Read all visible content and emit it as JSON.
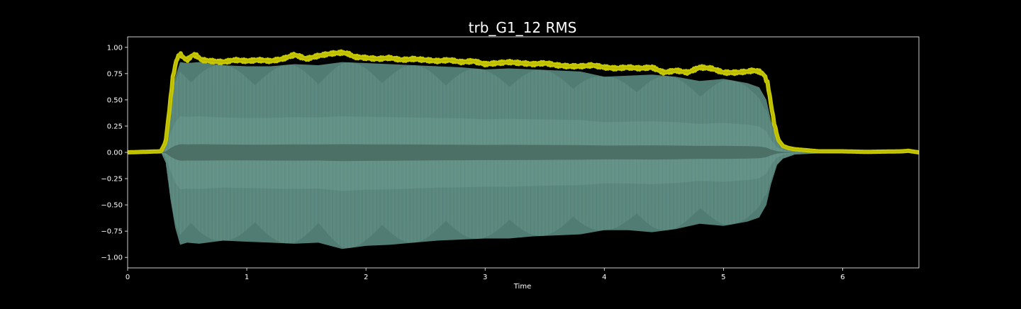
{
  "chart_data": {
    "type": "line",
    "title": "trb_G1_12 RMS",
    "xlabel": "Time",
    "ylabel": "",
    "xlim": [
      0,
      6.64
    ],
    "ylim": [
      -1.1,
      1.1
    ],
    "xticks": [
      0,
      1,
      2,
      3,
      4,
      5,
      6
    ],
    "xtick_labels": [
      "0",
      "1",
      "2",
      "3",
      "4",
      "5",
      "6"
    ],
    "yticks": [
      1.0,
      0.75,
      0.5,
      0.25,
      0.0,
      -0.25,
      -0.5,
      -0.75,
      -1.0
    ],
    "ytick_labels": [
      "1.00",
      "0.75",
      "0.50",
      "0.25",
      "0.00",
      "−0.25",
      "−0.50",
      "−0.75",
      "−1.00"
    ],
    "grid": false,
    "background": "#000000",
    "series": [
      {
        "kind": "waveform-envelope",
        "color": "#5a8a7f",
        "inner_color": "#3b5a52",
        "x": [
          0.0,
          0.28,
          0.32,
          0.36,
          0.4,
          0.44,
          0.5,
          0.6,
          0.8,
          1.0,
          1.2,
          1.4,
          1.6,
          1.8,
          2.0,
          2.2,
          2.4,
          2.6,
          2.8,
          3.0,
          3.2,
          3.4,
          3.6,
          3.8,
          4.0,
          4.2,
          4.4,
          4.6,
          4.8,
          5.0,
          5.2,
          5.3,
          5.36,
          5.4,
          5.45,
          5.5,
          5.6,
          5.8,
          6.0,
          6.3,
          6.64
        ],
        "upper": [
          0.0,
          0.0,
          0.1,
          0.45,
          0.72,
          0.86,
          0.85,
          0.86,
          0.83,
          0.82,
          0.82,
          0.84,
          0.83,
          0.86,
          0.85,
          0.84,
          0.83,
          0.82,
          0.81,
          0.79,
          0.8,
          0.79,
          0.78,
          0.77,
          0.72,
          0.73,
          0.74,
          0.72,
          0.68,
          0.7,
          0.66,
          0.62,
          0.5,
          0.3,
          0.12,
          0.06,
          0.02,
          0.01,
          0.0,
          0.0,
          0.0
        ],
        "lower": [
          0.0,
          0.0,
          -0.1,
          -0.45,
          -0.72,
          -0.88,
          -0.86,
          -0.87,
          -0.84,
          -0.85,
          -0.86,
          -0.87,
          -0.86,
          -0.92,
          -0.89,
          -0.88,
          -0.86,
          -0.84,
          -0.83,
          -0.82,
          -0.82,
          -0.8,
          -0.79,
          -0.78,
          -0.74,
          -0.74,
          -0.76,
          -0.73,
          -0.68,
          -0.7,
          -0.66,
          -0.62,
          -0.5,
          -0.3,
          -0.12,
          -0.06,
          -0.02,
          -0.01,
          0.0,
          0.0,
          0.0
        ]
      },
      {
        "kind": "rms-line",
        "color": "#c8c800",
        "x": [
          0.0,
          0.28,
          0.32,
          0.35,
          0.38,
          0.41,
          0.44,
          0.47,
          0.5,
          0.55,
          0.58,
          0.62,
          0.7,
          0.8,
          0.9,
          1.0,
          1.1,
          1.2,
          1.3,
          1.4,
          1.5,
          1.6,
          1.7,
          1.8,
          1.85,
          1.9,
          2.0,
          2.1,
          2.2,
          2.3,
          2.4,
          2.5,
          2.6,
          2.7,
          2.8,
          2.9,
          3.0,
          3.1,
          3.2,
          3.3,
          3.4,
          3.5,
          3.6,
          3.7,
          3.8,
          3.9,
          4.0,
          4.1,
          4.2,
          4.3,
          4.4,
          4.5,
          4.6,
          4.7,
          4.8,
          4.9,
          5.0,
          5.1,
          5.2,
          5.25,
          5.3,
          5.34,
          5.37,
          5.4,
          5.43,
          5.46,
          5.5,
          5.55,
          5.6,
          5.7,
          5.8,
          6.0,
          6.2,
          6.5,
          6.55,
          6.64
        ],
        "y": [
          0.0,
          0.01,
          0.1,
          0.4,
          0.72,
          0.88,
          0.94,
          0.9,
          0.88,
          0.93,
          0.92,
          0.88,
          0.87,
          0.86,
          0.88,
          0.87,
          0.88,
          0.87,
          0.89,
          0.93,
          0.89,
          0.92,
          0.94,
          0.95,
          0.94,
          0.91,
          0.9,
          0.89,
          0.9,
          0.88,
          0.89,
          0.88,
          0.87,
          0.88,
          0.86,
          0.87,
          0.84,
          0.85,
          0.86,
          0.85,
          0.84,
          0.85,
          0.83,
          0.82,
          0.82,
          0.83,
          0.81,
          0.8,
          0.81,
          0.8,
          0.81,
          0.76,
          0.78,
          0.76,
          0.81,
          0.8,
          0.76,
          0.76,
          0.77,
          0.78,
          0.77,
          0.74,
          0.66,
          0.45,
          0.25,
          0.12,
          0.06,
          0.04,
          0.03,
          0.02,
          0.01,
          0.01,
          0.005,
          0.01,
          0.015,
          0.0
        ]
      }
    ]
  }
}
